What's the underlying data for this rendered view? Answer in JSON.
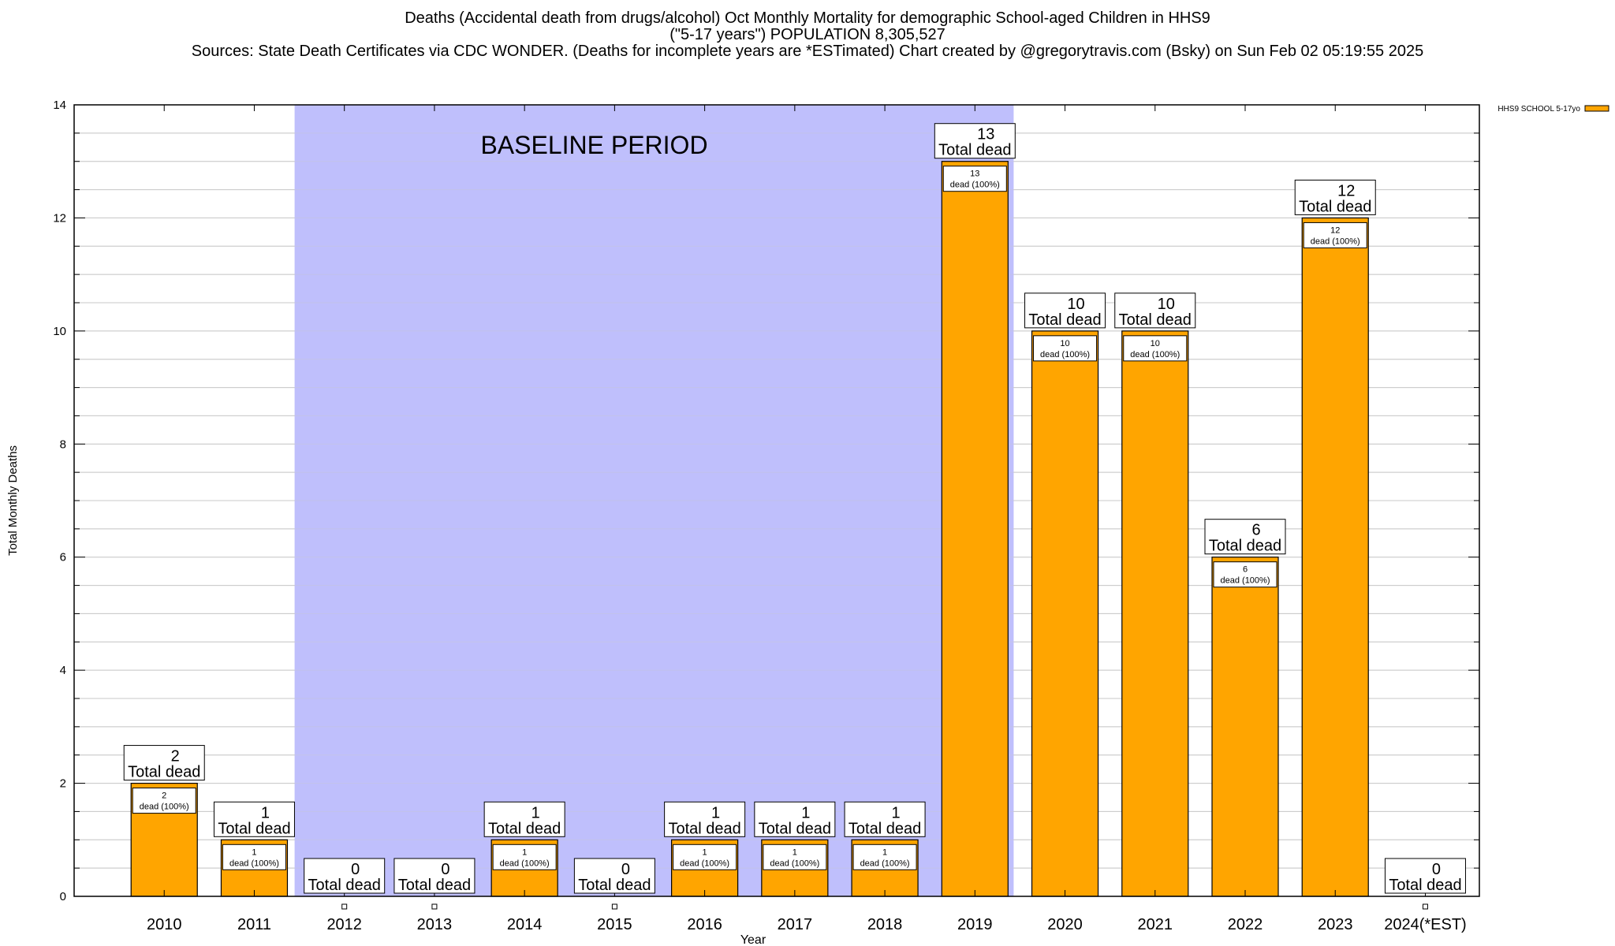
{
  "chart_data": {
    "type": "bar",
    "title_lines": [
      "Deaths (Accidental death from drugs/alcohol) Oct Monthly Mortality for demographic School-aged Children in HHS9",
      "(\"5-17 years\") POPULATION 8,305,527",
      "Sources: State Death Certificates via CDC WONDER. (Deaths for incomplete years are *ESTimated)                Chart created by @gregorytravis.com (Bsky) on Sun Feb 02 05:19:55 2025"
    ],
    "xlabel": "Year",
    "ylabel": "Total Monthly Deaths",
    "ylim": [
      0,
      14
    ],
    "yticks": [
      "0",
      "2",
      "4",
      "6",
      "8",
      "10",
      "12",
      "14"
    ],
    "grid": true,
    "legend": {
      "position": "top-right",
      "label": "HHS9 SCHOOL 5-17yo"
    },
    "categories": [
      "2010",
      "2011",
      "2012",
      "2013",
      "2014",
      "2015",
      "2016",
      "2017",
      "2018",
      "2019",
      "2020",
      "2021",
      "2022",
      "2023",
      "2024(*EST)"
    ],
    "series": [
      {
        "name": "HHS9 SCHOOL 5-17yo",
        "values": [
          2,
          1,
          0,
          0,
          1,
          0,
          1,
          1,
          1,
          13,
          10,
          10,
          6,
          12,
          0
        ]
      }
    ],
    "total_label": "Total dead",
    "inner_label_suffix": "dead (100%)",
    "baseline": {
      "label": "BASELINE PERIOD",
      "from": "2012",
      "to": "2019"
    },
    "colors": {
      "bar": "#ffa500",
      "baseline": "#bfbffc",
      "grid": "#c8c8c8"
    }
  }
}
